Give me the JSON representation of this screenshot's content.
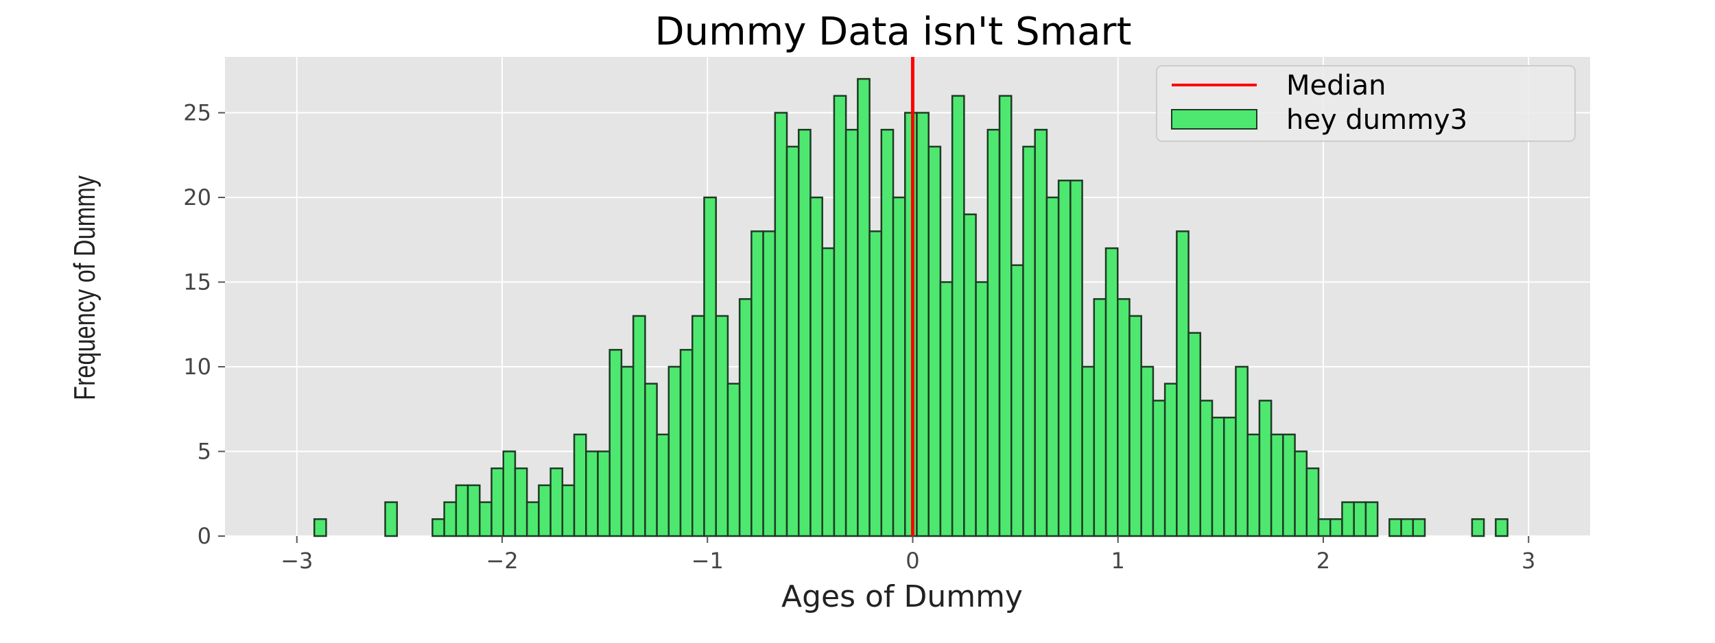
{
  "chart_data": {
    "type": "bar",
    "title": "Dummy Data isn't Smart",
    "xlabel": "Ages of Dummy",
    "ylabel": "Frequency of Dummy",
    "xlim": [
      -3.35,
      3.3
    ],
    "ylim": [
      0,
      28.3
    ],
    "xticks": [
      -3,
      -2,
      -1,
      0,
      1,
      2,
      3
    ],
    "yticks": [
      0,
      5,
      10,
      15,
      20,
      25
    ],
    "xtick_labels": [
      "−3",
      "−2",
      "−1",
      "0",
      "1",
      "2",
      "3"
    ],
    "ytick_labels": [
      "0",
      "5",
      "10",
      "15",
      "20",
      "25"
    ],
    "grid": true,
    "legend_position": "top-right",
    "bin_start": -2.915,
    "bin_width": 0.05755,
    "series": [
      {
        "name": "hey dummy3",
        "color": "#4ee870",
        "edge_color": "#1f3a24",
        "values": [
          1,
          0,
          0,
          0,
          0,
          0,
          2,
          0,
          0,
          0,
          1,
          2,
          3,
          3,
          2,
          4,
          5,
          4,
          2,
          3,
          4,
          3,
          6,
          5,
          5,
          11,
          10,
          13,
          9,
          6,
          10,
          11,
          13,
          20,
          13,
          9,
          14,
          18,
          18,
          25,
          23,
          24,
          20,
          17,
          26,
          24,
          27,
          18,
          24,
          20,
          25,
          25,
          23,
          15,
          26,
          19,
          15,
          24,
          26,
          16,
          23,
          24,
          20,
          21,
          21,
          10,
          14,
          17,
          14,
          13,
          10,
          8,
          9,
          18,
          12,
          8,
          7,
          7,
          10,
          6,
          8,
          6,
          6,
          5,
          4,
          1,
          1,
          2,
          2,
          2,
          0,
          1,
          1,
          1,
          0,
          0,
          0,
          0,
          1,
          0,
          1
        ]
      }
    ],
    "median": {
      "name": "Median",
      "x": 0.0,
      "color": "#ff0000"
    },
    "legend": [
      {
        "label": "Median",
        "kind": "line",
        "color": "#ff0000"
      },
      {
        "label": "hey dummy3",
        "kind": "patch",
        "color": "#4ee870"
      }
    ],
    "background": "#e5e5e5",
    "grid_color": "#ffffff"
  }
}
